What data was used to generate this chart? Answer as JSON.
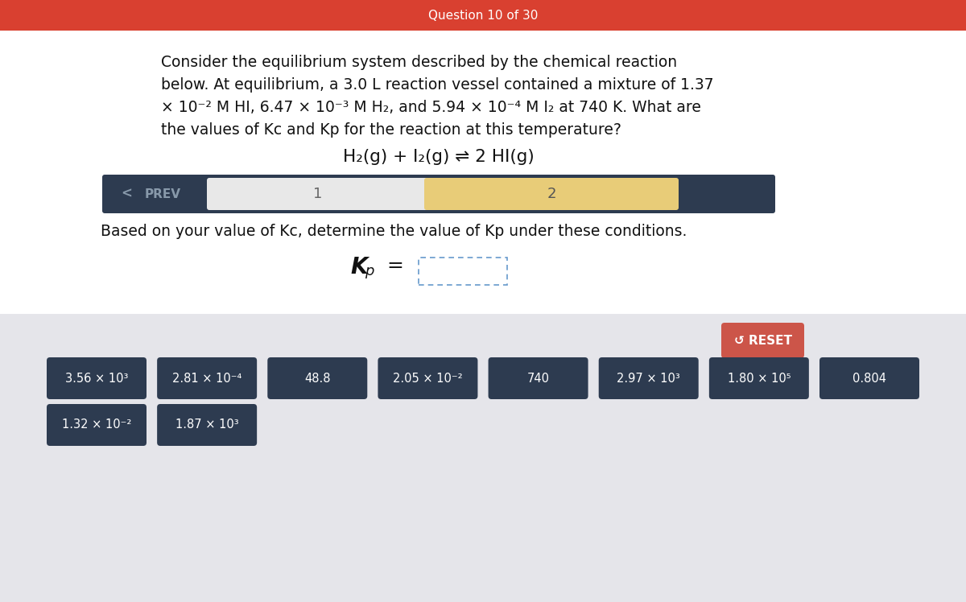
{
  "header_color": "#d94030",
  "header_text": "Question 10 of 30",
  "header_text_color": "#ffffff",
  "bg_color": "#ffffff",
  "bottom_bg_color": "#e5e5ea",
  "body_text_line1": "Consider the equilibrium system described by the chemical reaction",
  "body_text_line2": "below. At equilibrium, a 3.0 L reaction vessel contained a mixture of 1.37",
  "body_text_line3": "× 10⁻² M HI, 6.47 × 10⁻³ M H₂, and 5.94 × 10⁻⁴ M I₂ at 740 K. What are",
  "body_text_line4": "the values of Kc and Kp for the reaction at this temperature?",
  "equation": "H₂(g) + I₂(g) ⇌ 2 HI(g)",
  "nav_bg": "#2d3b50",
  "nav_light_bg": "#e8e8e8",
  "nav_yellow_bg": "#e8cc78",
  "prev_text": "PREV",
  "step1": "1",
  "step2": "2",
  "question_text": "Based on your value of Kc, determine the value of Kp under these conditions.",
  "reset_color": "#cc5549",
  "reset_text": "↺ RESET",
  "answer_bg": "#2d3b50",
  "answer_text_color": "#ffffff",
  "answers_row1": [
    "3.56 × 10³",
    "2.81 × 10⁻⁴",
    "48.8",
    "2.05 × 10⁻²",
    "740",
    "2.97 × 10³",
    "1.80 × 10⁵",
    "0.804"
  ],
  "answers_row2": [
    "1.32 × 10⁻²",
    "1.87 × 10³"
  ]
}
